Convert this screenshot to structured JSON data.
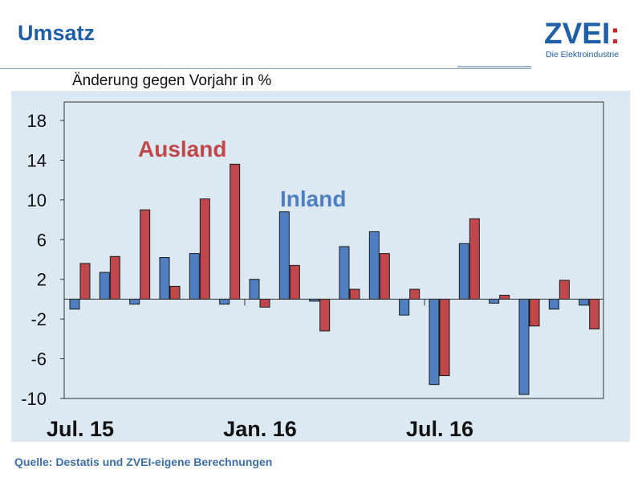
{
  "header": {
    "title": "Umsatz",
    "logo_word": "ZVEI",
    "logo_colon": ":",
    "logo_tagline": "Die Elektroindustrie"
  },
  "footer": {
    "source": "Quelle: Destatis und ZVEI-eigene Berechnungen"
  },
  "colors": {
    "inland": "#4f7fc0",
    "ausland": "#c0484a",
    "panel": "#dce9f2",
    "brand": "#1f5fa8"
  },
  "chart_data": {
    "type": "bar",
    "title": "",
    "ylabel": "Änderung gegen Vorjahr in %",
    "ylim": [
      -10,
      20
    ],
    "yticks": [
      18,
      14,
      10,
      6,
      2,
      -2,
      -6,
      -10
    ],
    "x_labels": [
      {
        "label": "Jul. 15",
        "index": 0
      },
      {
        "label": "Jan. 16",
        "index": 6
      },
      {
        "label": "Jul. 16",
        "index": 12
      }
    ],
    "grid": false,
    "series": [
      {
        "name": "Inland",
        "color": "#4f7fc0",
        "values": [
          -1.0,
          2.7,
          -0.5,
          4.2,
          4.6,
          -0.5,
          2.0,
          8.8,
          -0.2,
          5.3,
          6.8,
          -1.6,
          -8.6,
          5.6,
          -0.4,
          -9.6,
          -1.0,
          -0.6
        ]
      },
      {
        "name": "Ausland",
        "color": "#c0484a",
        "values": [
          3.6,
          4.3,
          9.0,
          1.3,
          10.1,
          13.6,
          -0.8,
          3.4,
          -3.2,
          1.0,
          4.6,
          1.0,
          -7.7,
          8.1,
          0.4,
          -2.7,
          1.9,
          -3.0
        ]
      }
    ]
  }
}
